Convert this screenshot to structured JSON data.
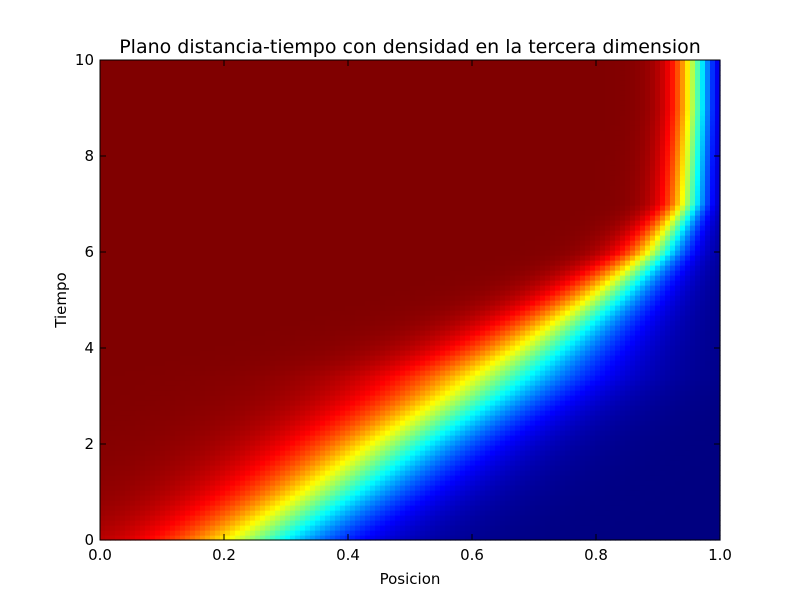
{
  "chart_data": {
    "type": "heatmap",
    "title": "Plano distancia-tiempo con densidad en la tercera dimension",
    "xlabel": "Posicion",
    "ylabel": "Tiempo",
    "xlim": [
      0.0,
      1.0
    ],
    "ylim": [
      0,
      10
    ],
    "x_ticks": [
      0.0,
      0.2,
      0.4,
      0.6,
      0.8,
      1.0
    ],
    "x_tick_labels": [
      "0.0",
      "0.2",
      "0.4",
      "0.6",
      "0.8",
      "1.0"
    ],
    "y_ticks": [
      0,
      2,
      4,
      6,
      8,
      10
    ],
    "y_tick_labels": [
      "0",
      "2",
      "4",
      "6",
      "8",
      "10"
    ],
    "colormap": "jet",
    "grid": false,
    "density_front": {
      "description_value": "position of the 0.5-density contour at each time",
      "t": [
        0,
        1,
        2,
        3,
        4,
        5,
        6,
        7,
        8,
        9,
        10
      ],
      "x": [
        0.25,
        0.37,
        0.48,
        0.6,
        0.71,
        0.81,
        0.9,
        0.95,
        0.955,
        0.96,
        0.96
      ]
    },
    "density_range": [
      0,
      1
    ],
    "colors": {
      "low": "#00007f",
      "high": "#7f0000",
      "axes_edge": "#000000"
    }
  }
}
